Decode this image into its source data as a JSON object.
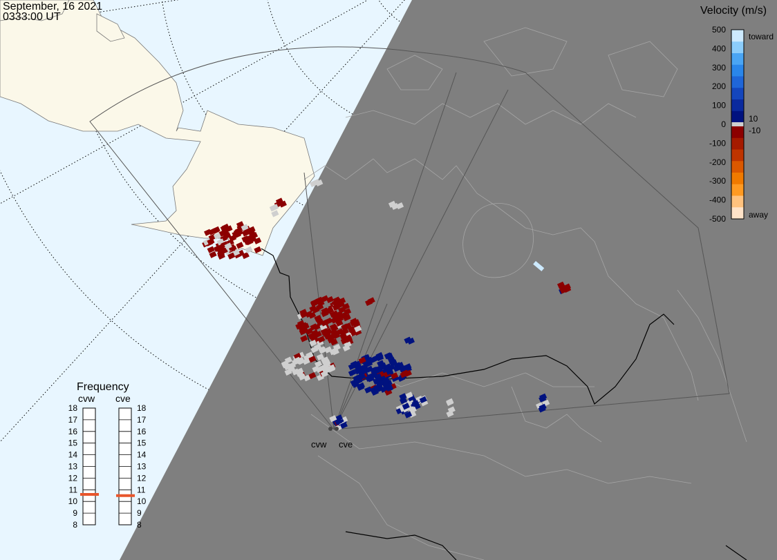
{
  "header": {
    "date": "September, 16 2021",
    "time": "0333:00 UT"
  },
  "colors": {
    "ocean": "#e8f6ff",
    "land": "#fbf8e9",
    "night": "#7f7f7f",
    "toward": "#00127f",
    "away": "#8c0000",
    "ground_scatter": "#cfcfcf",
    "frequency_marker": "#e8562c"
  },
  "radars": {
    "west": {
      "code": "cvw",
      "tuned_frequency_mhz": 10.6
    },
    "east": {
      "code": "cve",
      "tuned_frequency_mhz": 10.5
    }
  },
  "frequency_panel": {
    "title": "Frequency",
    "ticks": [
      "18",
      "17",
      "16",
      "15",
      "14",
      "13",
      "12",
      "11",
      "10",
      "9",
      "8"
    ]
  },
  "colorbar": {
    "title": "Velocity (m/s)",
    "tick_labels": [
      "500",
      "400",
      "300",
      "200",
      "100",
      "0",
      "-100",
      "-200",
      "-300",
      "-400",
      "-500"
    ],
    "inner_labels": [
      "10",
      "-10"
    ],
    "end_labels": {
      "top": "toward",
      "bottom": "away"
    },
    "positive_colors": [
      "#00127f",
      "#0a2a9e",
      "#1446bd",
      "#1f66d8",
      "#2a86ea",
      "#4aa5f4",
      "#8ccdfb",
      "#cdeaff"
    ],
    "negative_colors": [
      "#8c0000",
      "#a51a00",
      "#bf3400",
      "#db5800",
      "#f07a00",
      "#ff9a22",
      "#ffc27e",
      "#ffe3c8"
    ]
  }
}
